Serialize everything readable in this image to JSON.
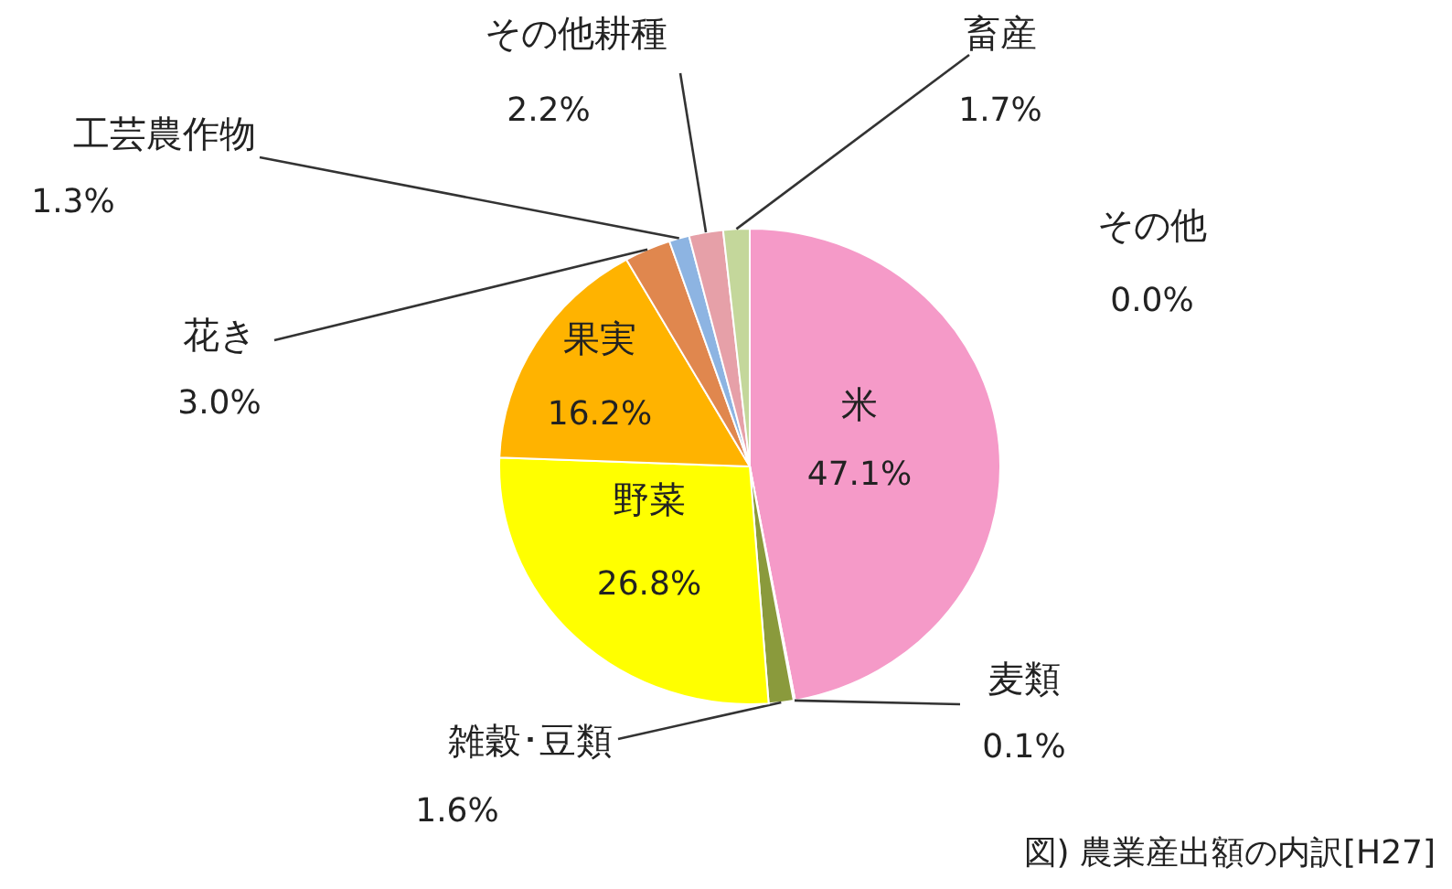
{
  "chart_data": {
    "type": "pie",
    "categories": [
      "米",
      "麦類",
      "雑穀･豆類",
      "野菜",
      "果実",
      "花き",
      "工芸農作物",
      "その他耕種",
      "畜産",
      "その他"
    ],
    "values": [
      47.1,
      0.1,
      1.6,
      26.8,
      16.2,
      3.0,
      1.3,
      2.2,
      1.7,
      0.0
    ],
    "value_labels": [
      "47.1%",
      "0.1%",
      "1.6%",
      "26.8%",
      "16.2%",
      "3.0%",
      "1.3%",
      "2.2%",
      "1.7%",
      "0.0%"
    ],
    "colors": [
      "#f59ac8",
      "#9bbb59",
      "#8a9a3c",
      "#ffff00",
      "#ffb300",
      "#e0874e",
      "#8db4e2",
      "#e6a0a8",
      "#c4d79b",
      null
    ],
    "annotations": [
      "図) 農業産出額の内訳[H27]"
    ]
  }
}
